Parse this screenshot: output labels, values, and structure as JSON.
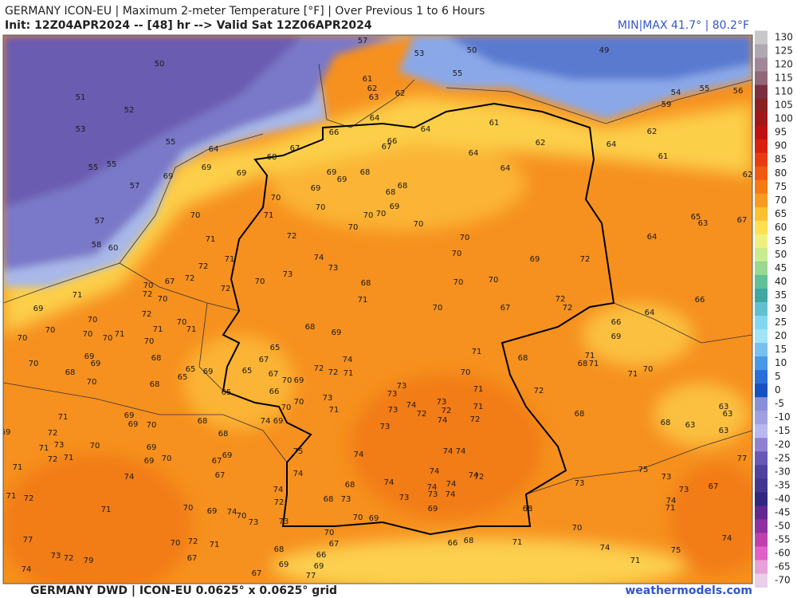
{
  "header": {
    "title": "GERMANY ICON-EU | Maximum 2-meter Temperature [°F] | Over Previous 1 to 6 Hours",
    "init": "Init: 12Z04APR2024 -- [48] hr --> Valid Sat 12Z06APR2024",
    "minmax": "MIN|MAX 41.7° | 80.2°F"
  },
  "footer": {
    "source": "GERMANY DWD | ICON-EU 0.0625° x 0.0625° grid",
    "site": "weathermodels.com"
  },
  "colorbar": {
    "ticks": [
      130,
      125,
      120,
      115,
      110,
      105,
      100,
      95,
      90,
      85,
      80,
      75,
      70,
      65,
      60,
      55,
      50,
      45,
      40,
      35,
      30,
      25,
      20,
      15,
      10,
      5,
      0,
      -5,
      -10,
      -15,
      -20,
      -25,
      -30,
      -35,
      -40,
      -45,
      -50,
      -55,
      -60,
      -65,
      -70
    ],
    "colors": [
      "#c8c8c8",
      "#b0a8b0",
      "#a08898",
      "#906878",
      "#7a3040",
      "#8a2020",
      "#a01818",
      "#c01010",
      "#d82010",
      "#e83c10",
      "#f05a10",
      "#f47a14",
      "#f89a20",
      "#fcc030",
      "#fde050",
      "#f0f080",
      "#c8ec90",
      "#98d890",
      "#60c098",
      "#40a8a0",
      "#60c0d0",
      "#80d8f0",
      "#a0e4f8",
      "#78c0f0",
      "#4898e8",
      "#2870d8",
      "#1850c0",
      "#8890d8",
      "#a0a0e0",
      "#b8b8f0",
      "#9080d0",
      "#6858b8",
      "#5040a0",
      "#403890",
      "#302880",
      "#602890",
      "#9030a0",
      "#c040b0",
      "#e060c8",
      "#e8a0d8",
      "#e8d0e8"
    ]
  },
  "labels": [
    50,
    51,
    52,
    53,
    55,
    55,
    55,
    57,
    57,
    58,
    60,
    57,
    53,
    50,
    49,
    55,
    61,
    62,
    63,
    62,
    64,
    64,
    61,
    62,
    64,
    64,
    66,
    66,
    67,
    64,
    62,
    61,
    55,
    56,
    54,
    59,
    62,
    64,
    68,
    67,
    69,
    69,
    69,
    69,
    68,
    69,
    69,
    68,
    68,
    70,
    70,
    71,
    70,
    71,
    72,
    70,
    70,
    70,
    69,
    70,
    70,
    70,
    74,
    73,
    73,
    70,
    71,
    72,
    72,
    72,
    67,
    68,
    71,
    70,
    70,
    70,
    69,
    72,
    72,
    72,
    67,
    64,
    65,
    63,
    67,
    66,
    64,
    66,
    69,
    70,
    71,
    71,
    71,
    68,
    68,
    71,
    70,
    71,
    71,
    72,
    72,
    68,
    68,
    63,
    63,
    63,
    63,
    68,
    69,
    65,
    65,
    67,
    67,
    66,
    70,
    69,
    72,
    72,
    71,
    74,
    73,
    73,
    74,
    73,
    72,
    72,
    73,
    73,
    71,
    70,
    70,
    69,
    74,
    73,
    74,
    74,
    74,
    74,
    74,
    74,
    72,
    74,
    74,
    74,
    74,
    73,
    73,
    69,
    68,
    68,
    73,
    75,
    74,
    74,
    72,
    73,
    70,
    74,
    73,
    73,
    75,
    73,
    73,
    74,
    71,
    67,
    77,
    68,
    70,
    74,
    74,
    75,
    71,
    69,
    70,
    70,
    67,
    66,
    68,
    71,
    70,
    69,
    70,
    72,
    71,
    67,
    67,
    68,
    69,
    69,
    66,
    77,
    77,
    73,
    72,
    79,
    74,
    71,
    74,
    72,
    71,
    71,
    70,
    70,
    69,
    71,
    70,
    70,
    71,
    70,
    68,
    69,
    69,
    70,
    70,
    68,
    65,
    65,
    68,
    69,
    65,
    69,
    69,
    70,
    71,
    72,
    71,
    73,
    72,
    71,
    70,
    69,
    69,
    70,
    68,
    68,
    67,
    69,
    67,
    70,
    69,
    71,
    71,
    70,
    72,
    72,
    70,
    70
  ]
}
